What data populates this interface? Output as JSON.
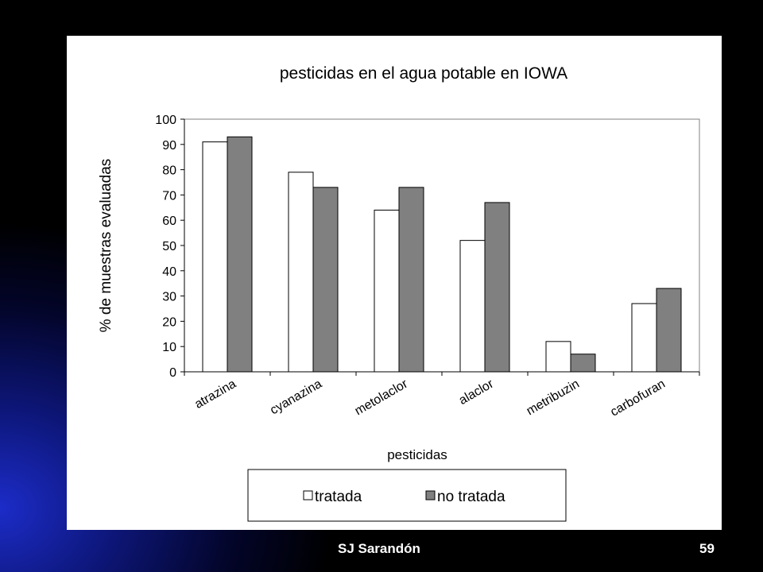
{
  "footer": {
    "author": "SJ Sarandón",
    "page_number": "59"
  },
  "colors": {
    "tratada": "#ffffff",
    "no_tratada": "#808080",
    "axis": "#000000",
    "plot_border": "#808080"
  },
  "chart_data": {
    "type": "bar",
    "title": "pesticidas en el agua potable en IOWA",
    "xlabel": "pesticidas",
    "ylabel": "% de muestras evaluadas",
    "categories": [
      "atrazina",
      "cyanazina",
      "metolaclor",
      "alaclor",
      "metribuzin",
      "carbofuran"
    ],
    "series": [
      {
        "name": "tratada",
        "values": [
          91,
          79,
          64,
          52,
          12,
          27
        ]
      },
      {
        "name": "no tratada",
        "values": [
          93,
          73,
          73,
          67,
          7,
          33
        ]
      }
    ],
    "ylim": [
      0,
      100
    ],
    "yticks": [
      0,
      10,
      20,
      30,
      40,
      50,
      60,
      70,
      80,
      90,
      100
    ],
    "grid": false,
    "legend": "bottom"
  }
}
